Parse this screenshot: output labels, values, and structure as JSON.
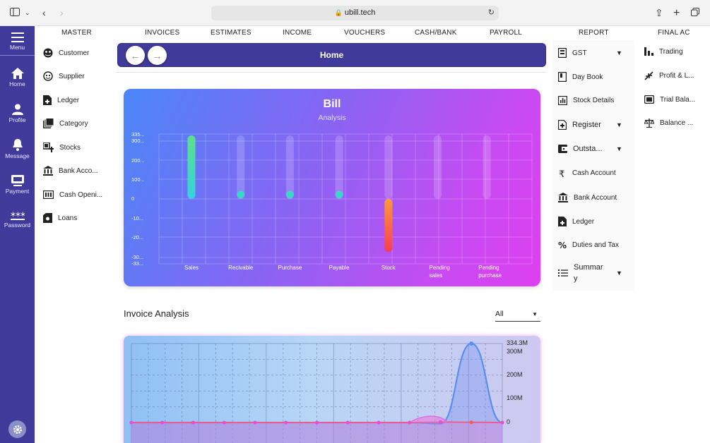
{
  "browser": {
    "url": "ubill.tech"
  },
  "leftnav": {
    "menu": "Menu",
    "items": [
      {
        "label": "Home",
        "icon": "home-icon"
      },
      {
        "label": "Profile",
        "icon": "person-icon"
      },
      {
        "label": "Message",
        "icon": "bell-icon"
      },
      {
        "label": "Payment",
        "icon": "payment-icon"
      },
      {
        "label": "Password",
        "icon": "password-icon"
      }
    ],
    "settings_icon": "gear-icon"
  },
  "topmenu": [
    "MASTER",
    "INVOICES",
    "ESTIMATES",
    "INCOME",
    "VOUCHERS",
    "CASH/BANK",
    "PAYROLL",
    "REPORT",
    "FINAL AC"
  ],
  "master": [
    "Customer",
    "Supplier",
    "Ledger",
    "Category",
    "Stocks",
    "Bank Acco...",
    "Cash Openi...",
    "Loans"
  ],
  "report": [
    {
      "label": "GST",
      "chevron": true
    },
    {
      "label": "Day Book",
      "chevron": false
    },
    {
      "label": "Stock Details",
      "chevron": false
    },
    {
      "label": "Register",
      "chevron": true
    },
    {
      "label": "Outsta...",
      "chevron": true
    },
    {
      "label": "Cash Account",
      "chevron": false
    },
    {
      "label": "Bank Account",
      "chevron": false
    },
    {
      "label": "Ledger",
      "chevron": false
    },
    {
      "label": "Duties and Tax",
      "chevron": false
    },
    {
      "label": "Summar\ny",
      "chevron": true
    }
  ],
  "final_ac": [
    "Trading",
    "Profit & L...",
    "Trial Bala...",
    "Balance ..."
  ],
  "homebar": {
    "title": "Home"
  },
  "bill_card": {
    "title": "Bill",
    "subtitle": "Analysis"
  },
  "invoice": {
    "title": "Invoice Analysis",
    "filter": "All"
  },
  "chart_data": [
    {
      "type": "bar",
      "title": "Bill",
      "subtitle": "Analysis",
      "categories": [
        "Sales",
        "Recivable",
        "Purchase",
        "Payable",
        "Stock",
        "Pending sales",
        "Pending purchase"
      ],
      "values": [
        335,
        0,
        0,
        0,
        -280,
        0,
        0
      ],
      "yticks": [
        "335...",
        "300...",
        "200...",
        "100...",
        "0",
        "-10...",
        "-20...",
        "-30...",
        "-33..."
      ],
      "ylim": [
        -335,
        335
      ],
      "grid": true
    },
    {
      "type": "area",
      "title": "Invoice Analysis",
      "yticks": [
        "334.3M",
        "300M",
        "200M",
        "100M",
        "0"
      ],
      "ylim": [
        0,
        334.3
      ],
      "series": [
        {
          "values": [
            0,
            0,
            0,
            0,
            0,
            0,
            0,
            0,
            0,
            0,
            -5,
            334.3,
            0
          ],
          "color": "#5a8ef0"
        },
        {
          "values": [
            0,
            0,
            0,
            0,
            0,
            0,
            0,
            0,
            0,
            0,
            2,
            1,
            0
          ],
          "color": "#f05a8e"
        }
      ],
      "grid": true
    }
  ]
}
